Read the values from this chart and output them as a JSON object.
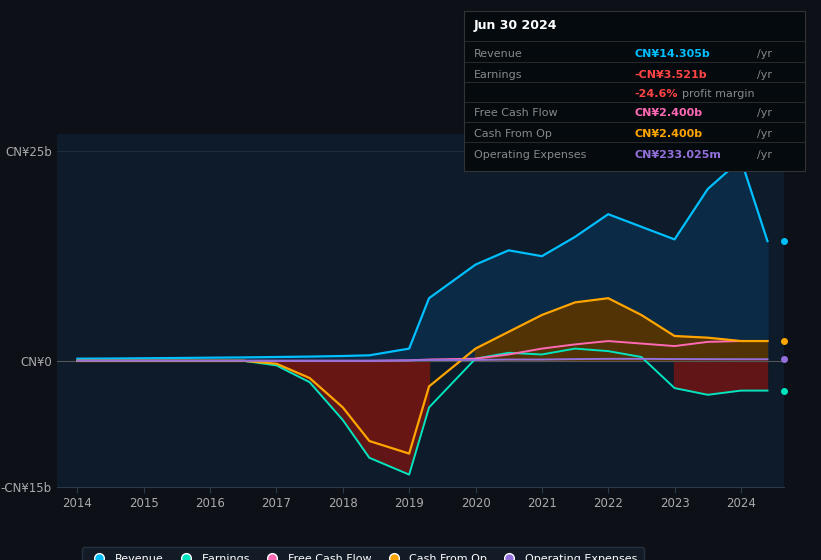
{
  "bg_color": "#0d1117",
  "plot_bg_color": "#0d1b2a",
  "grid_color": "#1e2d3d",
  "years": [
    2014,
    2014.5,
    2015,
    2015.5,
    2016,
    2016.5,
    2017,
    2017.5,
    2018,
    2018.4,
    2019,
    2019.3,
    2020,
    2020.5,
    2021,
    2021.5,
    2022,
    2022.5,
    2023,
    2023.5,
    2024,
    2024.4
  ],
  "revenue": [
    0.3,
    0.32,
    0.35,
    0.38,
    0.42,
    0.45,
    0.5,
    0.55,
    0.62,
    0.7,
    1.5,
    7.5,
    11.5,
    13.2,
    12.5,
    14.8,
    17.5,
    16.0,
    14.5,
    20.5,
    24.0,
    14.3
  ],
  "earnings": [
    0.05,
    0.05,
    0.05,
    0.05,
    0.05,
    0.05,
    -0.5,
    -2.5,
    -7.0,
    -11.5,
    -13.5,
    -5.5,
    0.3,
    1.0,
    0.8,
    1.5,
    1.2,
    0.5,
    -3.2,
    -4.0,
    -3.5,
    -3.5
  ],
  "free_cash_flow": [
    0.05,
    0.05,
    0.05,
    0.05,
    0.05,
    0.05,
    0.05,
    0.05,
    0.05,
    0.05,
    0.1,
    0.2,
    0.3,
    0.8,
    1.5,
    2.0,
    2.4,
    2.1,
    1.8,
    2.3,
    2.4,
    2.4
  ],
  "cash_from_op": [
    0.05,
    0.05,
    0.05,
    0.05,
    0.05,
    0.05,
    -0.3,
    -2.0,
    -5.5,
    -9.5,
    -11.0,
    -3.0,
    1.5,
    3.5,
    5.5,
    7.0,
    7.5,
    5.5,
    3.0,
    2.8,
    2.4,
    2.4
  ],
  "operating_expenses": [
    0.05,
    0.05,
    0.05,
    0.05,
    0.05,
    0.05,
    0.05,
    0.05,
    0.05,
    0.05,
    0.1,
    0.15,
    0.15,
    0.2,
    0.2,
    0.25,
    0.28,
    0.28,
    0.25,
    0.24,
    0.233,
    0.233
  ],
  "revenue_color": "#00bfff",
  "earnings_color": "#00e5c0",
  "free_cash_flow_color": "#ff69b4",
  "cash_from_op_color": "#ffa500",
  "operating_expenses_color": "#9370db",
  "revenue_fill": "#0a2a4a",
  "earnings_fill_neg": "#5a1010",
  "cash_from_op_fill_pos": "#5a3a00",
  "ylim": [
    -15,
    27
  ],
  "xticks": [
    2014,
    2015,
    2016,
    2017,
    2018,
    2019,
    2020,
    2021,
    2022,
    2023,
    2024
  ],
  "info_box": {
    "date": "Jun 30 2024",
    "revenue_label": "Revenue",
    "revenue_value": "CN¥14.305b",
    "revenue_color": "#00bfff",
    "earnings_label": "Earnings",
    "earnings_value": "-CN¥3.521b",
    "earnings_color": "#ff4444",
    "margin_value": "-24.6%",
    "margin_suffix": " profit margin",
    "margin_color": "#ff4444",
    "fcf_label": "Free Cash Flow",
    "fcf_value": "CN¥2.400b",
    "fcf_color": "#ff69b4",
    "cop_label": "Cash From Op",
    "cop_value": "CN¥2.400b",
    "cop_color": "#ffa500",
    "opex_label": "Operating Expenses",
    "opex_value": "CN¥233.025m",
    "opex_color": "#9370db"
  }
}
